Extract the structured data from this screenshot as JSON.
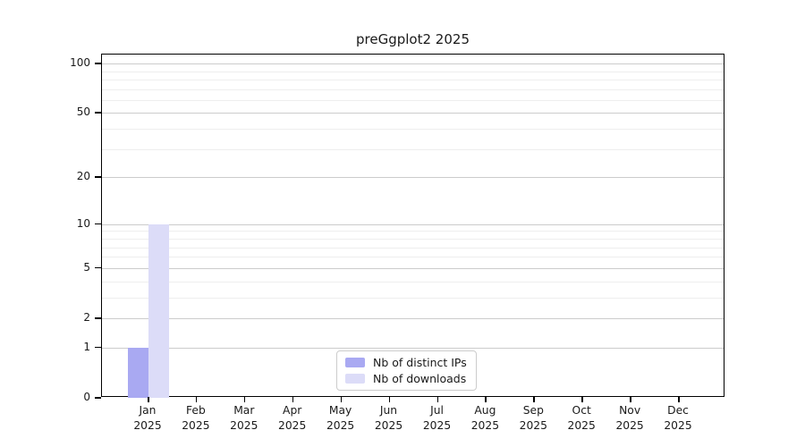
{
  "title": "preGgplot2 2025",
  "colors": {
    "distinct_ips": "#a9a9f2",
    "downloads": "#dcdcf8",
    "grid_major": "#cccccc",
    "grid_minor": "#eeeeee",
    "spine": "#000000",
    "text": "#1a1a1a",
    "legend_border": "#cccccc",
    "legend_background": "#ffffff"
  },
  "chart_data": {
    "type": "bar",
    "title": "preGgplot2 2025",
    "x": {
      "months": [
        "Jan",
        "Feb",
        "Mar",
        "Apr",
        "May",
        "Jun",
        "Jul",
        "Aug",
        "Sep",
        "Oct",
        "Nov",
        "Dec"
      ],
      "year": "2025"
    },
    "series": [
      {
        "name": "Nb of distinct IPs",
        "color": "#a9a9f2",
        "values": [
          1,
          0,
          0,
          0,
          0,
          0,
          0,
          0,
          0,
          0,
          0,
          0
        ]
      },
      {
        "name": "Nb of downloads",
        "color": "#dcdcf8",
        "values": [
          10,
          0,
          0,
          0,
          0,
          0,
          0,
          0,
          0,
          0,
          0,
          0
        ]
      }
    ],
    "y_axis": {
      "scale": "log1p",
      "tick_values": [
        0,
        1,
        2,
        5,
        10,
        20,
        50,
        100
      ],
      "minor_gridlines": [
        3,
        4,
        6,
        7,
        8,
        9,
        30,
        40,
        60,
        70,
        80,
        90
      ],
      "ylim": [
        0,
        113
      ],
      "axis_log_max": 2.058
    },
    "legend": {
      "position": "lower center",
      "entries": [
        "Nb of distinct IPs",
        "Nb of downloads"
      ]
    },
    "grid": "horizontal",
    "xlabel": "",
    "ylabel": ""
  }
}
